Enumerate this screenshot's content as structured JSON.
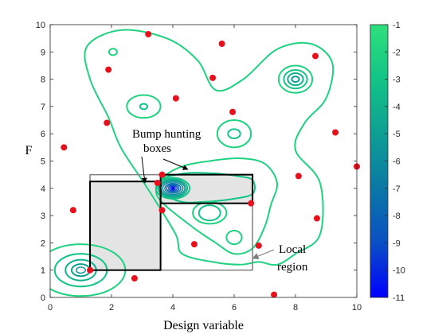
{
  "chart_data": {
    "type": "scatter",
    "title": "",
    "xlabel": "Design variable",
    "ylabel": "F",
    "xlim": [
      0,
      10
    ],
    "ylim": [
      0,
      10
    ],
    "xticks": [
      "0",
      "2",
      "4",
      "6",
      "8",
      "10"
    ],
    "yticks": [
      "0",
      "1",
      "2",
      "3",
      "4",
      "5",
      "6",
      "7",
      "8",
      "9",
      "10"
    ],
    "grid": false,
    "points": [
      {
        "x": 0.45,
        "y": 5.5
      },
      {
        "x": 0.75,
        "y": 3.2
      },
      {
        "x": 1.3,
        "y": 1.0
      },
      {
        "x": 1.9,
        "y": 8.35
      },
      {
        "x": 1.85,
        "y": 6.4
      },
      {
        "x": 3.2,
        "y": 9.65
      },
      {
        "x": 2.75,
        "y": 0.7
      },
      {
        "x": 3.5,
        "y": 4.2
      },
      {
        "x": 3.65,
        "y": 4.5
      },
      {
        "x": 3.65,
        "y": 3.2
      },
      {
        "x": 4.1,
        "y": 7.3
      },
      {
        "x": 4.7,
        "y": 1.95
      },
      {
        "x": 5.3,
        "y": 8.05
      },
      {
        "x": 5.6,
        "y": 9.3
      },
      {
        "x": 5.95,
        "y": 6.8
      },
      {
        "x": 6.55,
        "y": 3.45
      },
      {
        "x": 6.8,
        "y": 1.9
      },
      {
        "x": 7.3,
        "y": 0.1
      },
      {
        "x": 8.1,
        "y": 4.45
      },
      {
        "x": 8.7,
        "y": 2.9
      },
      {
        "x": 8.65,
        "y": 8.85
      },
      {
        "x": 9.3,
        "y": 6.05
      },
      {
        "x": 10.0,
        "y": 4.8
      }
    ],
    "point_color": "#e8101c",
    "contours": [
      {
        "cx": 1.0,
        "cy": 1.0,
        "levels": [
          -2,
          -3,
          -4,
          -5,
          -6
        ],
        "rx": [
          1.45,
          0.85,
          0.5,
          0.3,
          0.15
        ],
        "ry": [
          0.95,
          0.6,
          0.38,
          0.22,
          0.11
        ]
      },
      {
        "cx": 4.0,
        "cy": 4.0,
        "levels": [
          -3,
          -4,
          -5,
          -6,
          -7,
          -8,
          -9,
          -10,
          -11
        ],
        "rx": [
          0.55,
          0.47,
          0.4,
          0.33,
          0.26,
          0.2,
          0.14,
          0.08,
          0.03
        ],
        "ry": [
          0.38,
          0.33,
          0.28,
          0.23,
          0.18,
          0.14,
          0.1,
          0.06,
          0.02
        ]
      },
      {
        "cx": 8.0,
        "cy": 8.0,
        "levels": [
          -2,
          -3,
          -4,
          -5
        ],
        "rx": [
          0.55,
          0.38,
          0.25,
          0.12
        ],
        "ry": [
          0.5,
          0.34,
          0.22,
          0.1
        ]
      },
      {
        "cx": 6.0,
        "cy": 6.0,
        "levels": [
          -2,
          -3
        ],
        "rx": [
          0.55,
          0.2
        ],
        "ry": [
          0.5,
          0.17
        ]
      },
      {
        "cx": 3.05,
        "cy": 7.0,
        "levels": [
          -2,
          -3
        ],
        "rx": [
          0.55,
          0.12
        ],
        "ry": [
          0.42,
          0.1
        ]
      },
      {
        "cx": 2.05,
        "cy": 9.0,
        "levels": [
          -2
        ],
        "rx": [
          0.13
        ],
        "ry": [
          0.12
        ]
      },
      {
        "cx": 5.2,
        "cy": 3.1,
        "levels": [
          -2,
          -3
        ],
        "rx": [
          0.55,
          0.35
        ],
        "ry": [
          0.4,
          0.28
        ]
      },
      {
        "cx": 6.0,
        "cy": 2.2,
        "levels": [
          -2
        ],
        "rx": [
          0.25
        ],
        "ry": [
          0.25
        ]
      }
    ],
    "outer_contours": [
      {
        "level": -2,
        "points": [
          [
            1.2,
            9.2
          ],
          [
            2.3,
            9.8
          ],
          [
            3.8,
            9.5
          ],
          [
            4.8,
            8.7
          ],
          [
            5.4,
            7.6
          ],
          [
            6.3,
            8.0
          ],
          [
            7.4,
            9.1
          ],
          [
            8.5,
            9.3
          ],
          [
            9.2,
            8.6
          ],
          [
            9.0,
            7.3
          ],
          [
            8.3,
            6.4
          ],
          [
            8.0,
            5.4
          ],
          [
            8.8,
            4.2
          ],
          [
            8.8,
            2.3
          ],
          [
            8.0,
            1.6
          ],
          [
            7.4,
            1.2
          ],
          [
            6.8,
            1.3
          ],
          [
            6.2,
            1.2
          ],
          [
            5.3,
            1.3
          ],
          [
            4.3,
            1.6
          ],
          [
            4.1,
            2.3
          ],
          [
            3.4,
            3.6
          ],
          [
            3.0,
            4.3
          ],
          [
            2.3,
            5.5
          ],
          [
            1.9,
            6.6
          ],
          [
            1.3,
            8.0
          ]
        ]
      },
      {
        "level": -2,
        "points": [
          [
            3.5,
            3.7
          ],
          [
            4.5,
            2.7
          ],
          [
            5.4,
            2.0
          ],
          [
            6.0,
            1.6
          ],
          [
            6.6,
            1.8
          ],
          [
            7.0,
            2.6
          ],
          [
            7.2,
            3.4
          ],
          [
            7.4,
            4.2
          ],
          [
            7.0,
            4.9
          ],
          [
            6.2,
            5.1
          ],
          [
            5.2,
            5.0
          ],
          [
            4.3,
            4.8
          ],
          [
            3.7,
            4.4
          ]
        ]
      },
      {
        "level": -3,
        "points": [
          [
            3.6,
            4.3
          ],
          [
            4.4,
            4.55
          ],
          [
            5.3,
            4.55
          ],
          [
            6.1,
            4.45
          ],
          [
            6.6,
            4.3
          ],
          [
            6.6,
            3.8
          ],
          [
            5.9,
            3.6
          ],
          [
            5.0,
            3.5
          ],
          [
            4.3,
            3.5
          ],
          [
            3.7,
            3.8
          ]
        ]
      }
    ],
    "colorbar": {
      "min": -11,
      "max": -1,
      "ticks": [
        "-1",
        "-2",
        "-3",
        "-4",
        "-5",
        "-6",
        "-7",
        "-8",
        "-9",
        "-10",
        "-11"
      ],
      "colors": [
        "#2ee07a",
        "#12c486",
        "#0e9f94",
        "#0a78a6",
        "#0a4fc4",
        "#0000ff"
      ]
    },
    "boxes": [
      {
        "name": "local-region",
        "x0": 1.3,
        "y0": 1.0,
        "x1": 6.6,
        "y1": 4.5,
        "fill": "none",
        "stroke": "#808080",
        "width": 1.5
      },
      {
        "name": "bump-box-1",
        "x0": 1.3,
        "y0": 1.0,
        "x1": 3.6,
        "y1": 4.25,
        "fill": "#e4e4e4",
        "stroke": "#000000",
        "width": 2
      },
      {
        "name": "bump-box-2",
        "x0": 3.6,
        "y0": 3.45,
        "x1": 6.6,
        "y1": 4.5,
        "fill": "#e4e4e4",
        "stroke": "#000000",
        "width": 2
      }
    ],
    "annotations": [
      {
        "name": "bump-hunting-label",
        "lines": [
          "Bump hunting",
          "boxes"
        ]
      },
      {
        "name": "local-region-label",
        "lines": [
          "Local",
          "region"
        ]
      }
    ]
  }
}
